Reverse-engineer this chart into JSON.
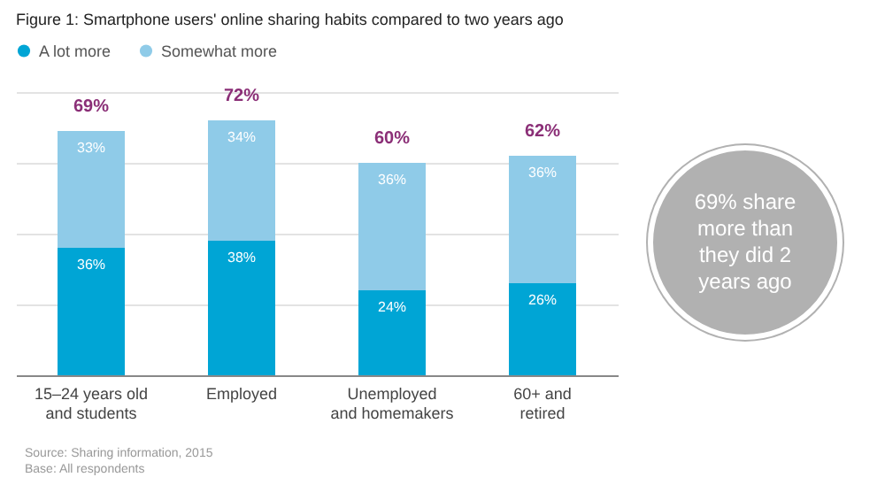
{
  "chart_data": {
    "type": "bar",
    "title": "Figure 1: Smartphone users' online sharing habits compared to two years ago",
    "categories": [
      "15–24 years old and students",
      "Employed",
      "Unemployed and homemakers",
      "60+ and retired"
    ],
    "stacked": true,
    "series": [
      {
        "name": "A lot more",
        "color": "#00a5d5",
        "values": [
          36,
          38,
          24,
          26
        ],
        "value_labels": [
          "36%",
          "38%",
          "24%",
          "26%"
        ]
      },
      {
        "name": "Somewhat more",
        "color": "#8fcbe8",
        "values": [
          33,
          34,
          36,
          36
        ],
        "value_labels": [
          "33%",
          "34%",
          "36%",
          "36%"
        ]
      }
    ],
    "totals": [
      "69%",
      "72%",
      "60%",
      "62%"
    ],
    "tick_labels": "x",
    "grid": "y",
    "legend": "top left",
    "annotations": [
      "69% share more than they did 2 years ago",
      "Source: Sharing information, 2015",
      "Base: All respondents"
    ]
  }
}
